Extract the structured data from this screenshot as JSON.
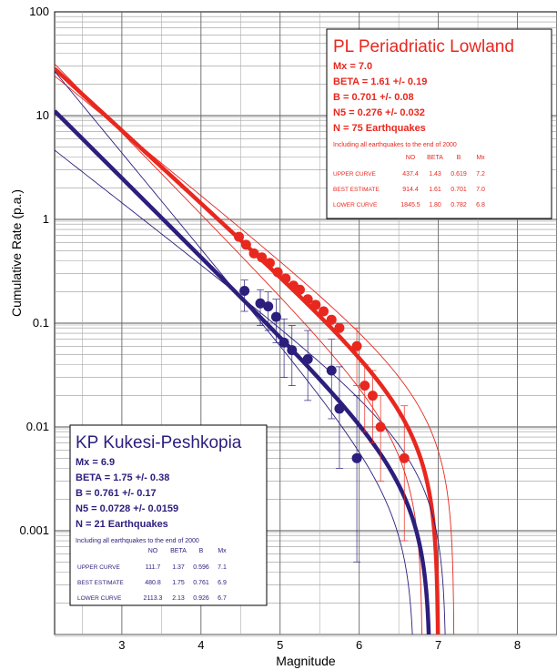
{
  "chart_data": {
    "type": "scatter",
    "title": "",
    "xlabel": "Magnitude",
    "ylabel": "Cumulative Rate (p.a.)",
    "xlim": [
      2.15,
      8.5
    ],
    "ylim": [
      0.0001,
      100
    ],
    "y_scale": "log",
    "grid": true,
    "x_ticks": [
      3,
      4,
      5,
      6,
      7,
      8
    ],
    "x_tick_labels": [
      "3",
      "4",
      "5",
      "6",
      "7",
      "8"
    ],
    "y_ticks": [
      100,
      10,
      1,
      0.1,
      0.01,
      0.001
    ],
    "y_tick_labels": [
      "100",
      "10",
      "1",
      "0.1",
      "0.01",
      "0.001"
    ],
    "series": [
      {
        "name": "PL Periadriatic Lowland",
        "color": "#e8281f",
        "mx": 7.0,
        "curve": {
          "best": {
            "beta": 1.61,
            "n5": 0.276,
            "mx": 7.0
          },
          "upper": {
            "beta": 1.43,
            "n5": 0.392,
            "mx": 7.2
          },
          "lower": {
            "beta": 1.8,
            "n5": 0.179,
            "mx": 6.8
          }
        },
        "points": [
          {
            "x": 4.48,
            "y": 0.68
          },
          {
            "x": 4.57,
            "y": 0.57
          },
          {
            "x": 4.67,
            "y": 0.47
          },
          {
            "x": 4.77,
            "y": 0.43
          },
          {
            "x": 4.87,
            "y": 0.38
          },
          {
            "x": 4.97,
            "y": 0.31
          },
          {
            "x": 5.07,
            "y": 0.27
          },
          {
            "x": 5.17,
            "y": 0.23
          },
          {
            "x": 5.25,
            "y": 0.21
          },
          {
            "x": 5.35,
            "y": 0.17
          },
          {
            "x": 5.45,
            "y": 0.15
          },
          {
            "x": 5.55,
            "y": 0.13
          },
          {
            "x": 5.65,
            "y": 0.108
          },
          {
            "x": 5.75,
            "y": 0.09
          },
          {
            "x": 5.97,
            "y": 0.06
          },
          {
            "x": 6.07,
            "y": 0.025
          },
          {
            "x": 6.17,
            "y": 0.02
          },
          {
            "x": 6.27,
            "y": 0.01
          },
          {
            "x": 6.57,
            "y": 0.005
          }
        ],
        "error_bars": [
          {
            "x": 5.97,
            "low": 0.025,
            "high": 0.09
          },
          {
            "x": 6.07,
            "low": 0.009,
            "high": 0.04
          },
          {
            "x": 6.17,
            "low": 0.007,
            "high": 0.035
          },
          {
            "x": 6.27,
            "low": 0.003,
            "high": 0.02
          },
          {
            "x": 6.57,
            "low": 0.0008,
            "high": 0.016
          }
        ]
      },
      {
        "name": "KP Kukesi-Peshkopia",
        "color": "#2b1e7c",
        "mx": 6.9,
        "curve": {
          "best": {
            "beta": 1.75,
            "n5": 0.0728,
            "mx": 6.9
          },
          "upper": {
            "beta": 1.37,
            "n5": 0.0884,
            "mx": 7.1
          },
          "lower": {
            "beta": 2.13,
            "n5": 0.0601,
            "mx": 6.7
          }
        },
        "points": [
          {
            "x": 4.55,
            "y": 0.205
          },
          {
            "x": 4.75,
            "y": 0.155
          },
          {
            "x": 4.85,
            "y": 0.145
          },
          {
            "x": 4.95,
            "y": 0.115
          },
          {
            "x": 5.05,
            "y": 0.065
          },
          {
            "x": 5.15,
            "y": 0.055
          },
          {
            "x": 5.35,
            "y": 0.045
          },
          {
            "x": 5.65,
            "y": 0.035
          },
          {
            "x": 5.75,
            "y": 0.015
          },
          {
            "x": 5.97,
            "y": 0.005
          }
        ],
        "error_bars": [
          {
            "x": 4.55,
            "low": 0.13,
            "high": 0.26
          },
          {
            "x": 4.75,
            "low": 0.095,
            "high": 0.21
          },
          {
            "x": 4.85,
            "low": 0.085,
            "high": 0.2
          },
          {
            "x": 4.95,
            "low": 0.065,
            "high": 0.17
          },
          {
            "x": 5.05,
            "low": 0.03,
            "high": 0.11
          },
          {
            "x": 5.15,
            "low": 0.025,
            "high": 0.095
          },
          {
            "x": 5.35,
            "low": 0.018,
            "high": 0.085
          },
          {
            "x": 5.65,
            "low": 0.012,
            "high": 0.07
          },
          {
            "x": 5.75,
            "low": 0.004,
            "high": 0.038
          },
          {
            "x": 5.97,
            "low": 0.0005,
            "high": 0.02
          }
        ]
      }
    ]
  },
  "legend_pl": {
    "title": "PL Periadriatic Lowland",
    "mx": "Mx = 7.0",
    "beta": "BETA = 1.61  +/- 0.19",
    "b": "B = 0.701  +/- 0.08",
    "n5": "N5 =    0.276 +/- 0.032",
    "n": "N = 75 Earthquakes",
    "note": "Including all earthquakes to the end of 2000",
    "table_header": [
      "NO",
      "BETA",
      "B",
      "Mx"
    ],
    "rows": [
      {
        "label": "UPPER CURVE",
        "values": [
          "437.4",
          "1.43",
          "0.619",
          "7.2"
        ]
      },
      {
        "label": "BEST ESTIMATE",
        "values": [
          "914.4",
          "1.61",
          "0.701",
          "7.0"
        ]
      },
      {
        "label": "LOWER CURVE",
        "values": [
          "1845.5",
          "1.80",
          "0.782",
          "6.8"
        ]
      }
    ]
  },
  "legend_kp": {
    "title": "KP Kukesi-Peshkopia",
    "mx": "Mx = 6.9",
    "beta": "BETA = 1.75  +/- 0.38",
    "b": "B = 0.761  +/- 0.17",
    "n5": "N5 =   0.0728 +/- 0.0159",
    "n": "N = 21 Earthquakes",
    "note": "Including all earthquakes to the end of 2000",
    "table_header": [
      "NO",
      "BETA",
      "B",
      "Mx"
    ],
    "rows": [
      {
        "label": "UPPER CURVE",
        "values": [
          "111.7",
          "1.37",
          "0.596",
          "7.1"
        ]
      },
      {
        "label": "BEST ESTIMATE",
        "values": [
          "480.8",
          "1.75",
          "0.761",
          "6.9"
        ]
      },
      {
        "label": "LOWER CURVE",
        "values": [
          "2113.3",
          "2.13",
          "0.926",
          "6.7"
        ]
      }
    ]
  }
}
